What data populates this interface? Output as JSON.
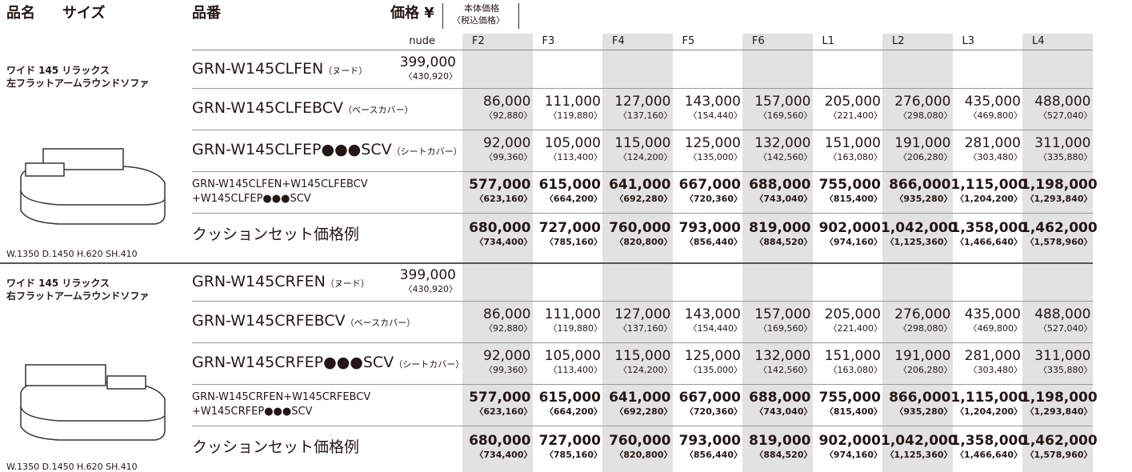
{
  "header": {
    "name": "品名",
    "size": "サイズ",
    "code": "品番",
    "price": "価格 ¥",
    "price_note": [
      "本体価格",
      "〈税込価格〉"
    ]
  },
  "columns": [
    {
      "label": "nude",
      "shaded": false
    },
    {
      "label": "F2",
      "shaded": true
    },
    {
      "label": "F3",
      "shaded": false
    },
    {
      "label": "F4",
      "shaded": true
    },
    {
      "label": "F5",
      "shaded": false
    },
    {
      "label": "F6",
      "shaded": true
    },
    {
      "label": "L1",
      "shaded": false
    },
    {
      "label": "L2",
      "shaded": true
    },
    {
      "label": "L3",
      "shaded": false
    },
    {
      "label": "L4",
      "shaded": true
    }
  ],
  "groups": [
    {
      "name": [
        "ワイド 145 リラックス",
        "左フラットアームラウンドソファ"
      ],
      "size": "W.1350 D.1450 H.620 SH.410",
      "rows": [
        {
          "code": "GRN-W145CLFEN",
          "note": "（ヌード）",
          "nude_price": [
            "399,000",
            "〈430,920〉"
          ]
        },
        {
          "code": "GRN-W145CLFEBCV",
          "note": "（ベースカバー）",
          "prices": [
            [
              "86,000",
              "〈92,880〉"
            ],
            [
              "111,000",
              "〈119,880〉"
            ],
            [
              "127,000",
              "〈137,160〉"
            ],
            [
              "143,000",
              "〈154,440〉"
            ],
            [
              "157,000",
              "〈169,560〉"
            ],
            [
              "205,000",
              "〈221,400〉"
            ],
            [
              "276,000",
              "〈298,080〉"
            ],
            [
              "435,000",
              "〈469,800〉"
            ],
            [
              "488,000",
              "〈527,040〉"
            ]
          ]
        },
        {
          "code": "GRN-W145CLFEP●●●SCV",
          "note": "（シートカバー）",
          "prices": [
            [
              "92,000",
              "〈99,360〉"
            ],
            [
              "105,000",
              "〈113,400〉"
            ],
            [
              "115,000",
              "〈124,200〉"
            ],
            [
              "125,000",
              "〈135,000〉"
            ],
            [
              "132,000",
              "〈142,560〉"
            ],
            [
              "151,000",
              "〈163,080〉"
            ],
            [
              "191,000",
              "〈206,280〉"
            ],
            [
              "281,000",
              "〈303,480〉"
            ],
            [
              "311,000",
              "〈335,880〉"
            ]
          ]
        },
        {
          "code": [
            "GRN-W145CLFEN+W145CLFEBCV",
            "+W145CLFEP●●●SCV"
          ],
          "bold": true,
          "prices": [
            [
              "577,000",
              "〈623,160〉"
            ],
            [
              "615,000",
              "〈664,200〉"
            ],
            [
              "641,000",
              "〈692,280〉"
            ],
            [
              "667,000",
              "〈720,360〉"
            ],
            [
              "688,000",
              "〈743,040〉"
            ],
            [
              "755,000",
              "〈815,400〉"
            ],
            [
              "866,000",
              "〈935,280〉"
            ],
            [
              "1,115,000",
              "〈1,204,200〉"
            ],
            [
              "1,198,000",
              "〈1,293,840〉"
            ]
          ]
        },
        {
          "code": "クッションセット価格例",
          "bold": true,
          "prices": [
            [
              "680,000",
              "〈734,400〉"
            ],
            [
              "727,000",
              "〈785,160〉"
            ],
            [
              "760,000",
              "〈820,800〉"
            ],
            [
              "793,000",
              "〈856,440〉"
            ],
            [
              "819,000",
              "〈884,520〉"
            ],
            [
              "902,000",
              "〈974,160〉"
            ],
            [
              "1,042,000",
              "〈1,125,360〉"
            ],
            [
              "1,358,000",
              "〈1,466,640〉"
            ],
            [
              "1,462,000",
              "〈1,578,960〉"
            ]
          ]
        }
      ]
    },
    {
      "name": [
        "ワイド 145 リラックス",
        "右フラットアームラウンドソファ"
      ],
      "size": "W.1350 D.1450 H.620 SH.410",
      "rows": [
        {
          "code": "GRN-W145CRFEN",
          "note": "（ヌード）",
          "nude_price": [
            "399,000",
            "〈430,920〉"
          ]
        },
        {
          "code": "GRN-W145CRFEBCV",
          "note": "（ベースカバー）",
          "prices": [
            [
              "86,000",
              "〈92,880〉"
            ],
            [
              "111,000",
              "〈119,880〉"
            ],
            [
              "127,000",
              "〈137,160〉"
            ],
            [
              "143,000",
              "〈154,440〉"
            ],
            [
              "157,000",
              "〈169,560〉"
            ],
            [
              "205,000",
              "〈221,400〉"
            ],
            [
              "276,000",
              "〈298,080〉"
            ],
            [
              "435,000",
              "〈469,800〉"
            ],
            [
              "488,000",
              "〈527,040〉"
            ]
          ]
        },
        {
          "code": "GRN-W145CRFEP●●●SCV",
          "note": "（シートカバー）",
          "prices": [
            [
              "92,000",
              "〈99,360〉"
            ],
            [
              "105,000",
              "〈113,400〉"
            ],
            [
              "115,000",
              "〈124,200〉"
            ],
            [
              "125,000",
              "〈135,000〉"
            ],
            [
              "132,000",
              "〈142,560〉"
            ],
            [
              "151,000",
              "〈163,080〉"
            ],
            [
              "191,000",
              "〈206,280〉"
            ],
            [
              "281,000",
              "〈303,480〉"
            ],
            [
              "311,000",
              "〈335,880〉"
            ]
          ]
        },
        {
          "code": [
            "GRN-W145CRFEN+W145CRFEBCV",
            "+W145CRFEP●●●SCV"
          ],
          "bold": true,
          "prices": [
            [
              "577,000",
              "〈623,160〉"
            ],
            [
              "615,000",
              "〈664,200〉"
            ],
            [
              "641,000",
              "〈692,280〉"
            ],
            [
              "667,000",
              "〈720,360〉"
            ],
            [
              "688,000",
              "〈743,040〉"
            ],
            [
              "755,000",
              "〈815,400〉"
            ],
            [
              "866,000",
              "〈935,280〉"
            ],
            [
              "1,115,000",
              "〈1,204,200〉"
            ],
            [
              "1,198,000",
              "〈1,293,840〉"
            ]
          ]
        },
        {
          "code": "クッションセット価格例",
          "bold": true,
          "prices": [
            [
              "680,000",
              "〈734,400〉"
            ],
            [
              "727,000",
              "〈785,160〉"
            ],
            [
              "760,000",
              "〈820,800〉"
            ],
            [
              "793,000",
              "〈856,440〉"
            ],
            [
              "819,000",
              "〈884,520〉"
            ],
            [
              "902,000",
              "〈974,160〉"
            ],
            [
              "1,042,000",
              "〈1,125,360〉"
            ],
            [
              "1,358,000",
              "〈1,466,640〉"
            ],
            [
              "1,462,000",
              "〈1,578,960〉"
            ]
          ]
        }
      ]
    }
  ]
}
